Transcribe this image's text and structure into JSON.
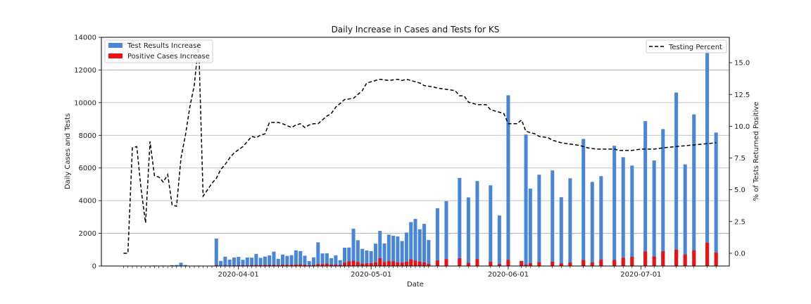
{
  "chart_data": {
    "type": "bar+line",
    "title": "Daily Increase in Cases and Tests for KS",
    "xlabel": "Date",
    "ylabel_left": "Daily Cases and Tests",
    "ylabel_right": "% of Tests Returned Positive",
    "ylim_left": [
      0,
      14000
    ],
    "ylim_right": [
      -1.0,
      17.0
    ],
    "yticks_left": [
      0,
      2000,
      4000,
      6000,
      8000,
      10000,
      12000,
      14000
    ],
    "yticks_left_labels": [
      "0",
      "2000",
      "4000",
      "6000",
      "8000",
      "10000",
      "12000",
      "14000"
    ],
    "yticks_right": [
      0.0,
      2.5,
      5.0,
      7.5,
      10.0,
      12.5,
      15.0
    ],
    "yticks_right_labels": [
      "0.0",
      "2.5",
      "5.0",
      "7.5",
      "10.0",
      "12.5",
      "15.0"
    ],
    "xlim": [
      "2020-03-01",
      "2020-07-21"
    ],
    "xticks": [
      "2020-04-01",
      "2020-05-01",
      "2020-06-01",
      "2020-07-01"
    ],
    "grid": "horizontal",
    "colors": {
      "tests": "#4a86d8",
      "positive": "#ee1111",
      "percent": "#000000"
    },
    "legend_left": {
      "placement": "upper-left",
      "entries": [
        "Test Results Increase",
        "Positive Cases Increase"
      ]
    },
    "legend_right": {
      "placement": "upper-right",
      "entries": [
        "Testing Percent"
      ]
    },
    "bars": [
      {
        "x": "2020-03-06",
        "t": 0,
        "p": 0
      },
      {
        "x": "2020-03-07",
        "t": 0,
        "p": 0
      },
      {
        "x": "2020-03-08",
        "t": 0,
        "p": 0
      },
      {
        "x": "2020-03-09",
        "t": 0,
        "p": 0
      },
      {
        "x": "2020-03-10",
        "t": 0,
        "p": 0
      },
      {
        "x": "2020-03-11",
        "t": 0,
        "p": 0
      },
      {
        "x": "2020-03-12",
        "t": 0,
        "p": 0
      },
      {
        "x": "2020-03-13",
        "t": 30,
        "p": 0
      },
      {
        "x": "2020-03-14",
        "t": 0,
        "p": 0
      },
      {
        "x": "2020-03-15",
        "t": 30,
        "p": 0
      },
      {
        "x": "2020-03-16",
        "t": 0,
        "p": 0
      },
      {
        "x": "2020-03-17",
        "t": 50,
        "p": 0
      },
      {
        "x": "2020-03-18",
        "t": 60,
        "p": 0
      },
      {
        "x": "2020-03-19",
        "t": 200,
        "p": 10
      },
      {
        "x": "2020-03-20",
        "t": 60,
        "p": 0
      },
      {
        "x": "2020-03-21",
        "t": 0,
        "p": 0
      },
      {
        "x": "2020-03-22",
        "t": 0,
        "p": 0
      },
      {
        "x": "2020-03-23",
        "t": 0,
        "p": 0
      },
      {
        "x": "2020-03-24",
        "t": 0,
        "p": 0
      },
      {
        "x": "2020-03-25",
        "t": 0,
        "p": 0
      },
      {
        "x": "2020-03-26",
        "t": 0,
        "p": 0
      },
      {
        "x": "2020-03-27",
        "t": 1680,
        "p": 40
      },
      {
        "x": "2020-03-28",
        "t": 310,
        "p": 20
      },
      {
        "x": "2020-03-29",
        "t": 570,
        "p": 30
      },
      {
        "x": "2020-03-30",
        "t": 390,
        "p": 20
      },
      {
        "x": "2020-03-31",
        "t": 520,
        "p": 30
      },
      {
        "x": "2020-04-01",
        "t": 560,
        "p": 40
      },
      {
        "x": "2020-04-02",
        "t": 380,
        "p": 40
      },
      {
        "x": "2020-04-03",
        "t": 520,
        "p": 40
      },
      {
        "x": "2020-04-04",
        "t": 510,
        "p": 50
      },
      {
        "x": "2020-04-05",
        "t": 740,
        "p": 60
      },
      {
        "x": "2020-04-06",
        "t": 500,
        "p": 50
      },
      {
        "x": "2020-04-07",
        "t": 580,
        "p": 60
      },
      {
        "x": "2020-04-08",
        "t": 650,
        "p": 60
      },
      {
        "x": "2020-04-09",
        "t": 880,
        "p": 70
      },
      {
        "x": "2020-04-10",
        "t": 440,
        "p": 50
      },
      {
        "x": "2020-04-11",
        "t": 700,
        "p": 80
      },
      {
        "x": "2020-04-12",
        "t": 620,
        "p": 70
      },
      {
        "x": "2020-04-13",
        "t": 660,
        "p": 70
      },
      {
        "x": "2020-04-14",
        "t": 960,
        "p": 90
      },
      {
        "x": "2020-04-15",
        "t": 910,
        "p": 100
      },
      {
        "x": "2020-04-16",
        "t": 630,
        "p": 70
      },
      {
        "x": "2020-04-17",
        "t": 300,
        "p": 40
      },
      {
        "x": "2020-04-18",
        "t": 530,
        "p": 60
      },
      {
        "x": "2020-04-19",
        "t": 1450,
        "p": 120
      },
      {
        "x": "2020-04-20",
        "t": 770,
        "p": 120
      },
      {
        "x": "2020-04-21",
        "t": 780,
        "p": 150
      },
      {
        "x": "2020-04-22",
        "t": 480,
        "p": 80
      },
      {
        "x": "2020-04-23",
        "t": 650,
        "p": 100
      },
      {
        "x": "2020-04-24",
        "t": 360,
        "p": 60
      },
      {
        "x": "2020-04-25",
        "t": 1120,
        "p": 200
      },
      {
        "x": "2020-04-26",
        "t": 1130,
        "p": 280
      },
      {
        "x": "2020-04-27",
        "t": 2290,
        "p": 320
      },
      {
        "x": "2020-04-28",
        "t": 1580,
        "p": 240
      },
      {
        "x": "2020-04-29",
        "t": 1050,
        "p": 140
      },
      {
        "x": "2020-04-30",
        "t": 950,
        "p": 160
      },
      {
        "x": "2020-05-01",
        "t": 910,
        "p": 170
      },
      {
        "x": "2020-05-02",
        "t": 1370,
        "p": 220
      },
      {
        "x": "2020-05-03",
        "t": 2150,
        "p": 480
      },
      {
        "x": "2020-05-04",
        "t": 1380,
        "p": 230
      },
      {
        "x": "2020-05-05",
        "t": 1920,
        "p": 300
      },
      {
        "x": "2020-05-06",
        "t": 1850,
        "p": 290
      },
      {
        "x": "2020-05-07",
        "t": 1810,
        "p": 220
      },
      {
        "x": "2020-05-08",
        "t": 1530,
        "p": 200
      },
      {
        "x": "2020-05-09",
        "t": 2050,
        "p": 260
      },
      {
        "x": "2020-05-10",
        "t": 2690,
        "p": 400
      },
      {
        "x": "2020-05-11",
        "t": 2880,
        "p": 330
      },
      {
        "x": "2020-05-12",
        "t": 2250,
        "p": 270
      },
      {
        "x": "2020-05-13",
        "t": 2580,
        "p": 220
      },
      {
        "x": "2020-05-14",
        "t": 1590,
        "p": 130
      },
      {
        "x": "2020-05-16",
        "t": 3540,
        "p": 340
      },
      {
        "x": "2020-05-18",
        "t": 3970,
        "p": 420
      },
      {
        "x": "2020-05-21",
        "t": 5390,
        "p": 470
      },
      {
        "x": "2020-05-23",
        "t": 4200,
        "p": 190
      },
      {
        "x": "2020-05-25",
        "t": 5200,
        "p": 420
      },
      {
        "x": "2020-05-28",
        "t": 4940,
        "p": 250
      },
      {
        "x": "2020-05-30",
        "t": 3090,
        "p": 120
      },
      {
        "x": "2020-06-01",
        "t": 10450,
        "p": 380
      },
      {
        "x": "2020-06-04",
        "t": 310,
        "p": 310
      },
      {
        "x": "2020-06-05",
        "t": 8050,
        "p": 80
      },
      {
        "x": "2020-06-06",
        "t": 4740,
        "p": 170
      },
      {
        "x": "2020-06-08",
        "t": 5590,
        "p": 230
      },
      {
        "x": "2020-06-11",
        "t": 5850,
        "p": 260
      },
      {
        "x": "2020-06-13",
        "t": 4210,
        "p": 160
      },
      {
        "x": "2020-06-15",
        "t": 5370,
        "p": 210
      },
      {
        "x": "2020-06-18",
        "t": 7780,
        "p": 370
      },
      {
        "x": "2020-06-20",
        "t": 5150,
        "p": 220
      },
      {
        "x": "2020-06-22",
        "t": 5500,
        "p": 380
      },
      {
        "x": "2020-06-25",
        "t": 7360,
        "p": 370
      },
      {
        "x": "2020-06-27",
        "t": 6660,
        "p": 500
      },
      {
        "x": "2020-06-29",
        "t": 6150,
        "p": 560
      },
      {
        "x": "2020-07-02",
        "t": 8870,
        "p": 890
      },
      {
        "x": "2020-07-04",
        "t": 6460,
        "p": 580
      },
      {
        "x": "2020-07-06",
        "t": 8380,
        "p": 900
      },
      {
        "x": "2020-07-09",
        "t": 10620,
        "p": 1000
      },
      {
        "x": "2020-07-11",
        "t": 6220,
        "p": 700
      },
      {
        "x": "2020-07-13",
        "t": 9280,
        "p": 960
      },
      {
        "x": "2020-07-16",
        "t": 13350,
        "p": 1420
      },
      {
        "x": "2020-07-18",
        "t": 8170,
        "p": 820
      }
    ],
    "percent_line": [
      {
        "x": "2020-03-06",
        "y": 0.0
      },
      {
        "x": "2020-03-07",
        "y": 0.0
      },
      {
        "x": "2020-03-08",
        "y": 8.3
      },
      {
        "x": "2020-03-09",
        "y": 8.4
      },
      {
        "x": "2020-03-10",
        "y": 5.0
      },
      {
        "x": "2020-03-11",
        "y": 2.4
      },
      {
        "x": "2020-03-12",
        "y": 8.8
      },
      {
        "x": "2020-03-13",
        "y": 6.1
      },
      {
        "x": "2020-03-14",
        "y": 6.0
      },
      {
        "x": "2020-03-15",
        "y": 5.6
      },
      {
        "x": "2020-03-16",
        "y": 6.2
      },
      {
        "x": "2020-03-17",
        "y": 3.8
      },
      {
        "x": "2020-03-18",
        "y": 3.7
      },
      {
        "x": "2020-03-19",
        "y": 7.5
      },
      {
        "x": "2020-03-20",
        "y": 9.3
      },
      {
        "x": "2020-03-21",
        "y": 11.5
      },
      {
        "x": "2020-03-22",
        "y": 13.2
      },
      {
        "x": "2020-03-23",
        "y": 16.6
      },
      {
        "x": "2020-03-24",
        "y": 4.5
      },
      {
        "x": "2020-03-25",
        "y": 5.0
      },
      {
        "x": "2020-03-26",
        "y": 5.5
      },
      {
        "x": "2020-03-27",
        "y": 5.9
      },
      {
        "x": "2020-03-28",
        "y": 6.6
      },
      {
        "x": "2020-03-29",
        "y": 7.0
      },
      {
        "x": "2020-03-30",
        "y": 7.5
      },
      {
        "x": "2020-03-31",
        "y": 7.9
      },
      {
        "x": "2020-04-02",
        "y": 8.4
      },
      {
        "x": "2020-04-03",
        "y": 8.8
      },
      {
        "x": "2020-04-04",
        "y": 9.2
      },
      {
        "x": "2020-04-05",
        "y": 9.1
      },
      {
        "x": "2020-04-06",
        "y": 9.3
      },
      {
        "x": "2020-04-07",
        "y": 9.4
      },
      {
        "x": "2020-04-08",
        "y": 10.3
      },
      {
        "x": "2020-04-10",
        "y": 10.3
      },
      {
        "x": "2020-04-11",
        "y": 10.2
      },
      {
        "x": "2020-04-13",
        "y": 9.9
      },
      {
        "x": "2020-04-14",
        "y": 10.1
      },
      {
        "x": "2020-04-15",
        "y": 10.2
      },
      {
        "x": "2020-04-16",
        "y": 9.9
      },
      {
        "x": "2020-04-17",
        "y": 10.1
      },
      {
        "x": "2020-04-18",
        "y": 10.2
      },
      {
        "x": "2020-04-19",
        "y": 10.2
      },
      {
        "x": "2020-04-21",
        "y": 10.8
      },
      {
        "x": "2020-04-22",
        "y": 11.0
      },
      {
        "x": "2020-04-23",
        "y": 11.5
      },
      {
        "x": "2020-04-24",
        "y": 11.8
      },
      {
        "x": "2020-04-25",
        "y": 12.1
      },
      {
        "x": "2020-04-27",
        "y": 12.2
      },
      {
        "x": "2020-04-28",
        "y": 12.5
      },
      {
        "x": "2020-04-29",
        "y": 12.8
      },
      {
        "x": "2020-04-30",
        "y": 13.4
      },
      {
        "x": "2020-05-01",
        "y": 13.5
      },
      {
        "x": "2020-05-02",
        "y": 13.6
      },
      {
        "x": "2020-05-03",
        "y": 13.7
      },
      {
        "x": "2020-05-05",
        "y": 13.6
      },
      {
        "x": "2020-05-07",
        "y": 13.7
      },
      {
        "x": "2020-05-08",
        "y": 13.6
      },
      {
        "x": "2020-05-09",
        "y": 13.7
      },
      {
        "x": "2020-05-10",
        "y": 13.6
      },
      {
        "x": "2020-05-11",
        "y": 13.5
      },
      {
        "x": "2020-05-12",
        "y": 13.4
      },
      {
        "x": "2020-05-13",
        "y": 13.2
      },
      {
        "x": "2020-05-15",
        "y": 13.1
      },
      {
        "x": "2020-05-16",
        "y": 13.0
      },
      {
        "x": "2020-05-18",
        "y": 12.9
      },
      {
        "x": "2020-05-20",
        "y": 12.8
      },
      {
        "x": "2020-05-21",
        "y": 12.4
      },
      {
        "x": "2020-05-22",
        "y": 12.4
      },
      {
        "x": "2020-05-23",
        "y": 11.9
      },
      {
        "x": "2020-05-25",
        "y": 11.7
      },
      {
        "x": "2020-05-27",
        "y": 11.7
      },
      {
        "x": "2020-05-28",
        "y": 11.3
      },
      {
        "x": "2020-05-30",
        "y": 11.1
      },
      {
        "x": "2020-05-31",
        "y": 11.0
      },
      {
        "x": "2020-06-01",
        "y": 10.2
      },
      {
        "x": "2020-06-03",
        "y": 10.2
      },
      {
        "x": "2020-06-04",
        "y": 10.5
      },
      {
        "x": "2020-06-05",
        "y": 9.6
      },
      {
        "x": "2020-06-07",
        "y": 9.4
      },
      {
        "x": "2020-06-08",
        "y": 9.2
      },
      {
        "x": "2020-06-10",
        "y": 9.1
      },
      {
        "x": "2020-06-11",
        "y": 8.9
      },
      {
        "x": "2020-06-13",
        "y": 8.7
      },
      {
        "x": "2020-06-15",
        "y": 8.6
      },
      {
        "x": "2020-06-17",
        "y": 8.5
      },
      {
        "x": "2020-06-19",
        "y": 8.3
      },
      {
        "x": "2020-06-21",
        "y": 8.2
      },
      {
        "x": "2020-06-23",
        "y": 8.2
      },
      {
        "x": "2020-06-25",
        "y": 8.2
      },
      {
        "x": "2020-06-26",
        "y": 8.1
      },
      {
        "x": "2020-06-29",
        "y": 8.1
      },
      {
        "x": "2020-07-01",
        "y": 8.2
      },
      {
        "x": "2020-07-04",
        "y": 8.2
      },
      {
        "x": "2020-07-06",
        "y": 8.3
      },
      {
        "x": "2020-07-09",
        "y": 8.4
      },
      {
        "x": "2020-07-12",
        "y": 8.5
      },
      {
        "x": "2020-07-15",
        "y": 8.6
      },
      {
        "x": "2020-07-18",
        "y": 8.7
      }
    ]
  }
}
